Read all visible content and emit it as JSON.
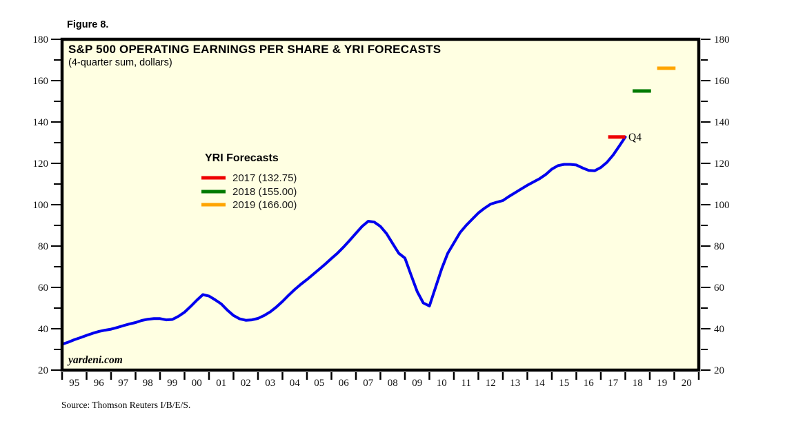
{
  "figure_label": "Figure 8.",
  "chart_data": {
    "type": "line",
    "title": "S&P 500 OPERATING EARNINGS PER SHARE & YRI FORECASTS",
    "subtitle": "(4-quarter sum, dollars)",
    "watermark": "yardeni.com",
    "source_note": "Source: Thomson Reuters I/B/E/S.",
    "xlabel": "",
    "ylabel": "",
    "x_range": [
      1995,
      2021
    ],
    "y_range": [
      20,
      180
    ],
    "y_major_step": 20,
    "y_minor_step": 10,
    "grid": false,
    "background_color": "#FFFFE2",
    "frame_color": "#000000",
    "x_tick_labels": [
      "95",
      "96",
      "97",
      "98",
      "99",
      "00",
      "01",
      "02",
      "03",
      "04",
      "05",
      "06",
      "07",
      "08",
      "09",
      "10",
      "11",
      "12",
      "13",
      "14",
      "15",
      "16",
      "17",
      "18",
      "19",
      "20"
    ],
    "y_tick_labels": [
      "20",
      "40",
      "60",
      "80",
      "100",
      "120",
      "140",
      "160",
      "180"
    ],
    "legend": {
      "title": "YRI Forecasts",
      "position": "inside-upper-left"
    },
    "series": [
      {
        "name": "S&P 500 operating earnings per share, 4-quarter sum",
        "color": "#0000EE",
        "points": [
          [
            1995.0,
            32.5
          ],
          [
            1995.25,
            33.5
          ],
          [
            1995.5,
            34.7
          ],
          [
            1995.75,
            35.7
          ],
          [
            1996.0,
            36.8
          ],
          [
            1996.25,
            37.8
          ],
          [
            1996.5,
            38.7
          ],
          [
            1996.75,
            39.3
          ],
          [
            1997.0,
            39.8
          ],
          [
            1997.25,
            40.6
          ],
          [
            1997.5,
            41.5
          ],
          [
            1997.75,
            42.3
          ],
          [
            1998.0,
            43.0
          ],
          [
            1998.25,
            44.0
          ],
          [
            1998.5,
            44.6
          ],
          [
            1998.75,
            44.9
          ],
          [
            1999.0,
            44.9
          ],
          [
            1999.25,
            44.3
          ],
          [
            1999.5,
            44.5
          ],
          [
            1999.75,
            46.0
          ],
          [
            2000.0,
            48.0
          ],
          [
            2000.25,
            50.8
          ],
          [
            2000.5,
            53.8
          ],
          [
            2000.75,
            56.5
          ],
          [
            2001.0,
            55.8
          ],
          [
            2001.25,
            54.0
          ],
          [
            2001.5,
            52.0
          ],
          [
            2001.75,
            49.0
          ],
          [
            2002.0,
            46.4
          ],
          [
            2002.25,
            44.8
          ],
          [
            2002.5,
            44.1
          ],
          [
            2002.75,
            44.3
          ],
          [
            2003.0,
            45.0
          ],
          [
            2003.25,
            46.4
          ],
          [
            2003.5,
            48.2
          ],
          [
            2003.75,
            50.5
          ],
          [
            2004.0,
            53.2
          ],
          [
            2004.25,
            56.2
          ],
          [
            2004.5,
            59.0
          ],
          [
            2004.75,
            61.5
          ],
          [
            2005.0,
            63.8
          ],
          [
            2005.25,
            66.3
          ],
          [
            2005.5,
            68.8
          ],
          [
            2005.75,
            71.3
          ],
          [
            2006.0,
            74.0
          ],
          [
            2006.25,
            76.6
          ],
          [
            2006.5,
            79.6
          ],
          [
            2006.75,
            82.8
          ],
          [
            2007.0,
            86.2
          ],
          [
            2007.25,
            89.5
          ],
          [
            2007.5,
            92.0
          ],
          [
            2007.75,
            91.6
          ],
          [
            2008.0,
            89.5
          ],
          [
            2008.25,
            86.0
          ],
          [
            2008.5,
            81.2
          ],
          [
            2008.75,
            76.5
          ],
          [
            2009.0,
            74.2
          ],
          [
            2009.25,
            66.0
          ],
          [
            2009.5,
            58.0
          ],
          [
            2009.75,
            52.5
          ],
          [
            2010.0,
            51.0
          ],
          [
            2010.25,
            60.0
          ],
          [
            2010.5,
            69.0
          ],
          [
            2010.75,
            76.5
          ],
          [
            2011.0,
            81.5
          ],
          [
            2011.25,
            86.5
          ],
          [
            2011.5,
            90.0
          ],
          [
            2011.75,
            93.0
          ],
          [
            2012.0,
            96.0
          ],
          [
            2012.25,
            98.3
          ],
          [
            2012.5,
            100.3
          ],
          [
            2012.75,
            101.2
          ],
          [
            2013.0,
            102.0
          ],
          [
            2013.25,
            104.0
          ],
          [
            2013.5,
            105.8
          ],
          [
            2013.75,
            107.6
          ],
          [
            2014.0,
            109.4
          ],
          [
            2014.25,
            111.0
          ],
          [
            2014.5,
            112.6
          ],
          [
            2014.75,
            114.6
          ],
          [
            2015.0,
            117.2
          ],
          [
            2015.25,
            118.9
          ],
          [
            2015.5,
            119.5
          ],
          [
            2015.75,
            119.5
          ],
          [
            2016.0,
            119.2
          ],
          [
            2016.25,
            117.8
          ],
          [
            2016.5,
            116.6
          ],
          [
            2016.75,
            116.4
          ],
          [
            2017.0,
            118.0
          ],
          [
            2017.25,
            120.5
          ],
          [
            2017.5,
            124.0
          ],
          [
            2017.75,
            128.3
          ],
          [
            2018.0,
            132.75
          ]
        ]
      }
    ],
    "forecasts": [
      {
        "year": "2017",
        "value": 132.75,
        "label": "2017 (132.75)",
        "color": "#EE0000",
        "span": [
          2017.3,
          2018.0
        ]
      },
      {
        "year": "2018",
        "value": 155.0,
        "label": "2018 (155.00)",
        "color": "#007A00",
        "span": [
          2018.3,
          2019.05
        ]
      },
      {
        "year": "2019",
        "value": 166.0,
        "label": "2019 (166.00)",
        "color": "#FFA500",
        "span": [
          2019.3,
          2020.05
        ]
      }
    ],
    "annotations": [
      {
        "text": "Q4",
        "color": "#0000EE",
        "x": 2018.05,
        "y": 132.75
      }
    ]
  }
}
